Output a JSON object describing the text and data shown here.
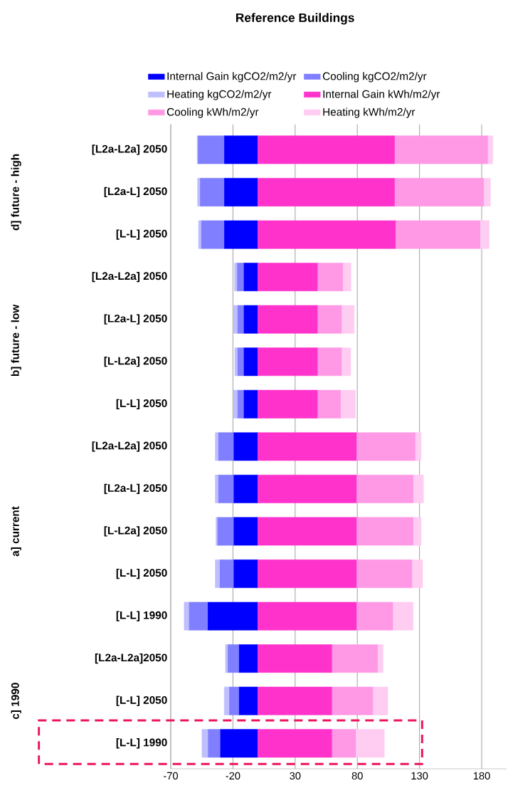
{
  "chart_data": {
    "type": "bar",
    "orientation": "horizontal",
    "stacked": true,
    "title": "Reference Buildings",
    "categories": [
      "[L2a-L2a] 2050",
      "[L2a-L] 2050",
      "[L-L] 2050",
      "[L2a-L2a] 2050",
      "[L2a-L] 2050",
      "[L-L2a] 2050",
      "[L-L] 2050",
      "[L2a-L2a] 2050",
      "[L2a-L] 2050",
      "[L-L2a] 2050",
      "[L-L] 2050",
      "[L-L] 1990",
      "[L2a-L2a]2050",
      "[L-L] 2050",
      "[L-L] 1990"
    ],
    "series": [
      {
        "name": "Internal Gain kgCO2/m2/yr",
        "color": "#0000ff",
        "values": [
          -27.2,
          -27.2,
          -27.2,
          -11.5,
          -11.5,
          -11.5,
          -11.5,
          -19.6,
          -19.6,
          -19.6,
          -19.6,
          -40.4,
          -15.3,
          -15.3,
          -30.4
        ]
      },
      {
        "name": "Cooling kgCO2/m2/yr",
        "color": "#7f7fff",
        "values": [
          -21.1,
          -19.4,
          -18.5,
          -5.3,
          -5.0,
          -5.0,
          -5.0,
          -12.3,
          -12.3,
          -13.0,
          -11.2,
          -15.1,
          -9.0,
          -7.9,
          -9.8
        ]
      },
      {
        "name": "Heating kgCO2/m2/yr",
        "color": "#bfbfff",
        "values": [
          -0.5,
          -1.9,
          -2.0,
          -2.0,
          -3.0,
          -2.0,
          -3.0,
          -2.3,
          -2.3,
          -1.0,
          -3.4,
          -3.7,
          -1.7,
          -3.8,
          -4.7
        ]
      },
      {
        "name": "Internal Gain kWh/m2/yr",
        "color": "#ff33cc",
        "values": [
          110.2,
          110.2,
          111.0,
          48.3,
          48.3,
          48.3,
          48.3,
          79.6,
          79.6,
          79.6,
          79.6,
          79.6,
          59.8,
          59.8,
          59.8
        ]
      },
      {
        "name": "Cooling kWh/m2/yr",
        "color": "#ff99e5",
        "values": [
          74.9,
          71.7,
          68.0,
          20.4,
          19.4,
          19.4,
          18.5,
          47.2,
          45.7,
          45.7,
          44.7,
          29.3,
          36.8,
          33.0,
          19.2
        ]
      },
      {
        "name": "Heating kWh/m2/yr",
        "color": "#ffccf2",
        "values": [
          3.8,
          5.1,
          7.0,
          6.2,
          9.8,
          7.0,
          11.7,
          4.5,
          7.9,
          6.0,
          8.2,
          16.0,
          4.2,
          11.7,
          22.7
        ]
      }
    ],
    "xlim": [
      -70,
      200
    ],
    "xticks": [
      -70,
      -20,
      30,
      80,
      130,
      180
    ],
    "grid": "x",
    "legend": "top",
    "annotations": [
      "d] future - high",
      "b] future - low",
      "a] current",
      "c] 1990"
    ]
  }
}
